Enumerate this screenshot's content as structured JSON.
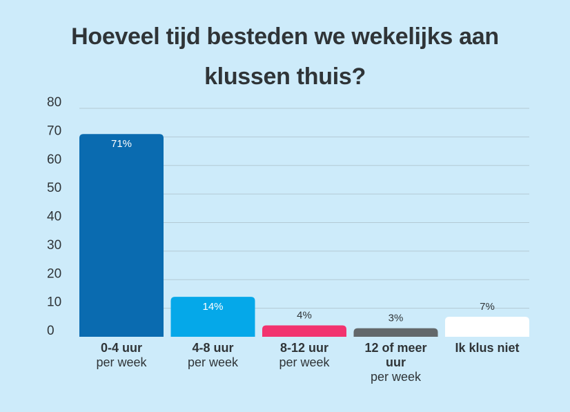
{
  "chart_data": {
    "type": "bar",
    "title_lines": [
      "Hoeveel tijd besteden we wekelijks aan",
      "klussen thuis?"
    ],
    "categories": [
      {
        "main": "0-4 uur",
        "sub": "per week"
      },
      {
        "main": "4-8 uur",
        "sub": "per week"
      },
      {
        "main": "8-12 uur",
        "sub": "per week"
      },
      {
        "main": "12 of meer uur",
        "sub": "per week"
      },
      {
        "main": "Ik klus niet",
        "sub": ""
      }
    ],
    "values": [
      71,
      14,
      4,
      3,
      7
    ],
    "value_labels": [
      "71%",
      "14%",
      "4%",
      "3%",
      "7%"
    ],
    "colors": [
      "#0a6bb0",
      "#05a8e9",
      "#f2336f",
      "#63686b",
      "#ffffff"
    ],
    "label_colors": [
      "#ffffff",
      "#ffffff",
      "#2f3437",
      "#2f3437",
      "#2f3437"
    ],
    "label_inside": [
      true,
      true,
      false,
      false,
      false
    ],
    "yticks": [
      0,
      10,
      20,
      30,
      40,
      50,
      60,
      70,
      80
    ],
    "ylim": [
      0,
      80
    ],
    "xlabel": "",
    "ylabel": "",
    "grid": true,
    "legend": "none"
  }
}
